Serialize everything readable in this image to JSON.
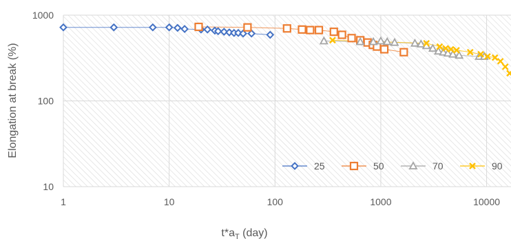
{
  "chart_data": {
    "type": "scatter",
    "title": "",
    "xlabel": "t*a",
    "xlabel_sub": "T",
    "xlabel_unit": " (day)",
    "ylabel": "Elongation at break (%)",
    "x_scale": "log",
    "y_scale": "log",
    "xlim": [
      1,
      17000
    ],
    "ylim": [
      10,
      1000
    ],
    "x_ticks": [
      1,
      10,
      100,
      1000,
      10000
    ],
    "x_tick_labels": [
      "1",
      "10",
      "100",
      "1000",
      "10000"
    ],
    "y_ticks": [
      10,
      100,
      1000
    ],
    "y_tick_labels": [
      "10",
      "100",
      "1000"
    ],
    "grid": true,
    "legend_position": "bottom-right",
    "series": [
      {
        "name": "25",
        "marker": "diamond",
        "color": "#4472C4",
        "x": [
          1,
          3,
          7,
          10,
          12,
          14,
          20,
          23,
          27,
          29,
          33,
          37,
          41,
          45,
          50,
          60,
          90
        ],
        "y": [
          720,
          720,
          720,
          720,
          710,
          690,
          680,
          680,
          660,
          650,
          640,
          630,
          620,
          620,
          610,
          610,
          590
        ]
      },
      {
        "name": "50",
        "marker": "square",
        "color": "#ED7D31",
        "x": [
          19,
          55,
          130,
          180,
          215,
          260,
          360,
          430,
          530,
          640,
          750,
          840,
          920,
          1080,
          1650
        ],
        "y": [
          730,
          720,
          700,
          680,
          670,
          670,
          640,
          590,
          540,
          510,
          480,
          450,
          430,
          400,
          370
        ]
      },
      {
        "name": "70",
        "marker": "triangle",
        "color": "#A5A5A5",
        "x": [
          290,
          640,
          850,
          1000,
          1150,
          1350,
          2100,
          2400,
          2700,
          3100,
          3500,
          3900,
          4300,
          4800,
          5500,
          8500,
          9500
        ],
        "y": [
          500,
          490,
          490,
          500,
          490,
          480,
          470,
          460,
          440,
          410,
          380,
          370,
          360,
          350,
          340,
          330,
          330
        ]
      },
      {
        "name": "90",
        "marker": "x",
        "color": "#FFC000",
        "x": [
          350,
          2700,
          3600,
          4100,
          4600,
          5200,
          7000,
          8800,
          10200,
          12000,
          13500,
          15000,
          16500
        ],
        "y": [
          510,
          470,
          430,
          410,
          400,
          390,
          370,
          350,
          330,
          320,
          290,
          250,
          210
        ]
      }
    ]
  }
}
